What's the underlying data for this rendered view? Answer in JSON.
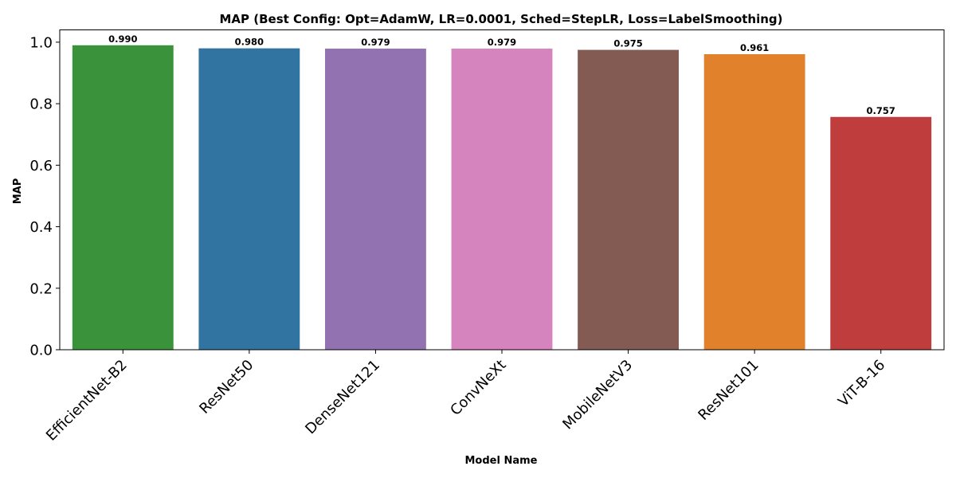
{
  "chart_data": {
    "type": "bar",
    "title": "MAP (Best Config: Opt=AdamW, LR=0.0001, Sched=StepLR, Loss=LabelSmoothing)",
    "xlabel": "Model Name",
    "ylabel": "MAP",
    "categories": [
      "EfficientNet-B2",
      "ResNet50",
      "DenseNet121",
      "ConvNeXt",
      "MobileNetV3",
      "ResNet101",
      "ViT-B-16"
    ],
    "values": [
      0.99,
      0.98,
      0.979,
      0.979,
      0.975,
      0.961,
      0.757
    ],
    "value_labels": [
      "0.990",
      "0.980",
      "0.979",
      "0.979",
      "0.975",
      "0.961",
      "0.757"
    ],
    "colors": [
      "#3a923a",
      "#3274a1",
      "#9372b2",
      "#d684bd",
      "#845b53",
      "#e1812c",
      "#c03d3e"
    ],
    "ylim": [
      0,
      1.04
    ],
    "yticks": [
      0.0,
      0.2,
      0.4,
      0.6,
      0.8,
      1.0
    ],
    "ytick_labels": [
      "0.0",
      "0.2",
      "0.4",
      "0.6",
      "0.8",
      "1.0"
    ],
    "grid": false,
    "legend": "none"
  }
}
